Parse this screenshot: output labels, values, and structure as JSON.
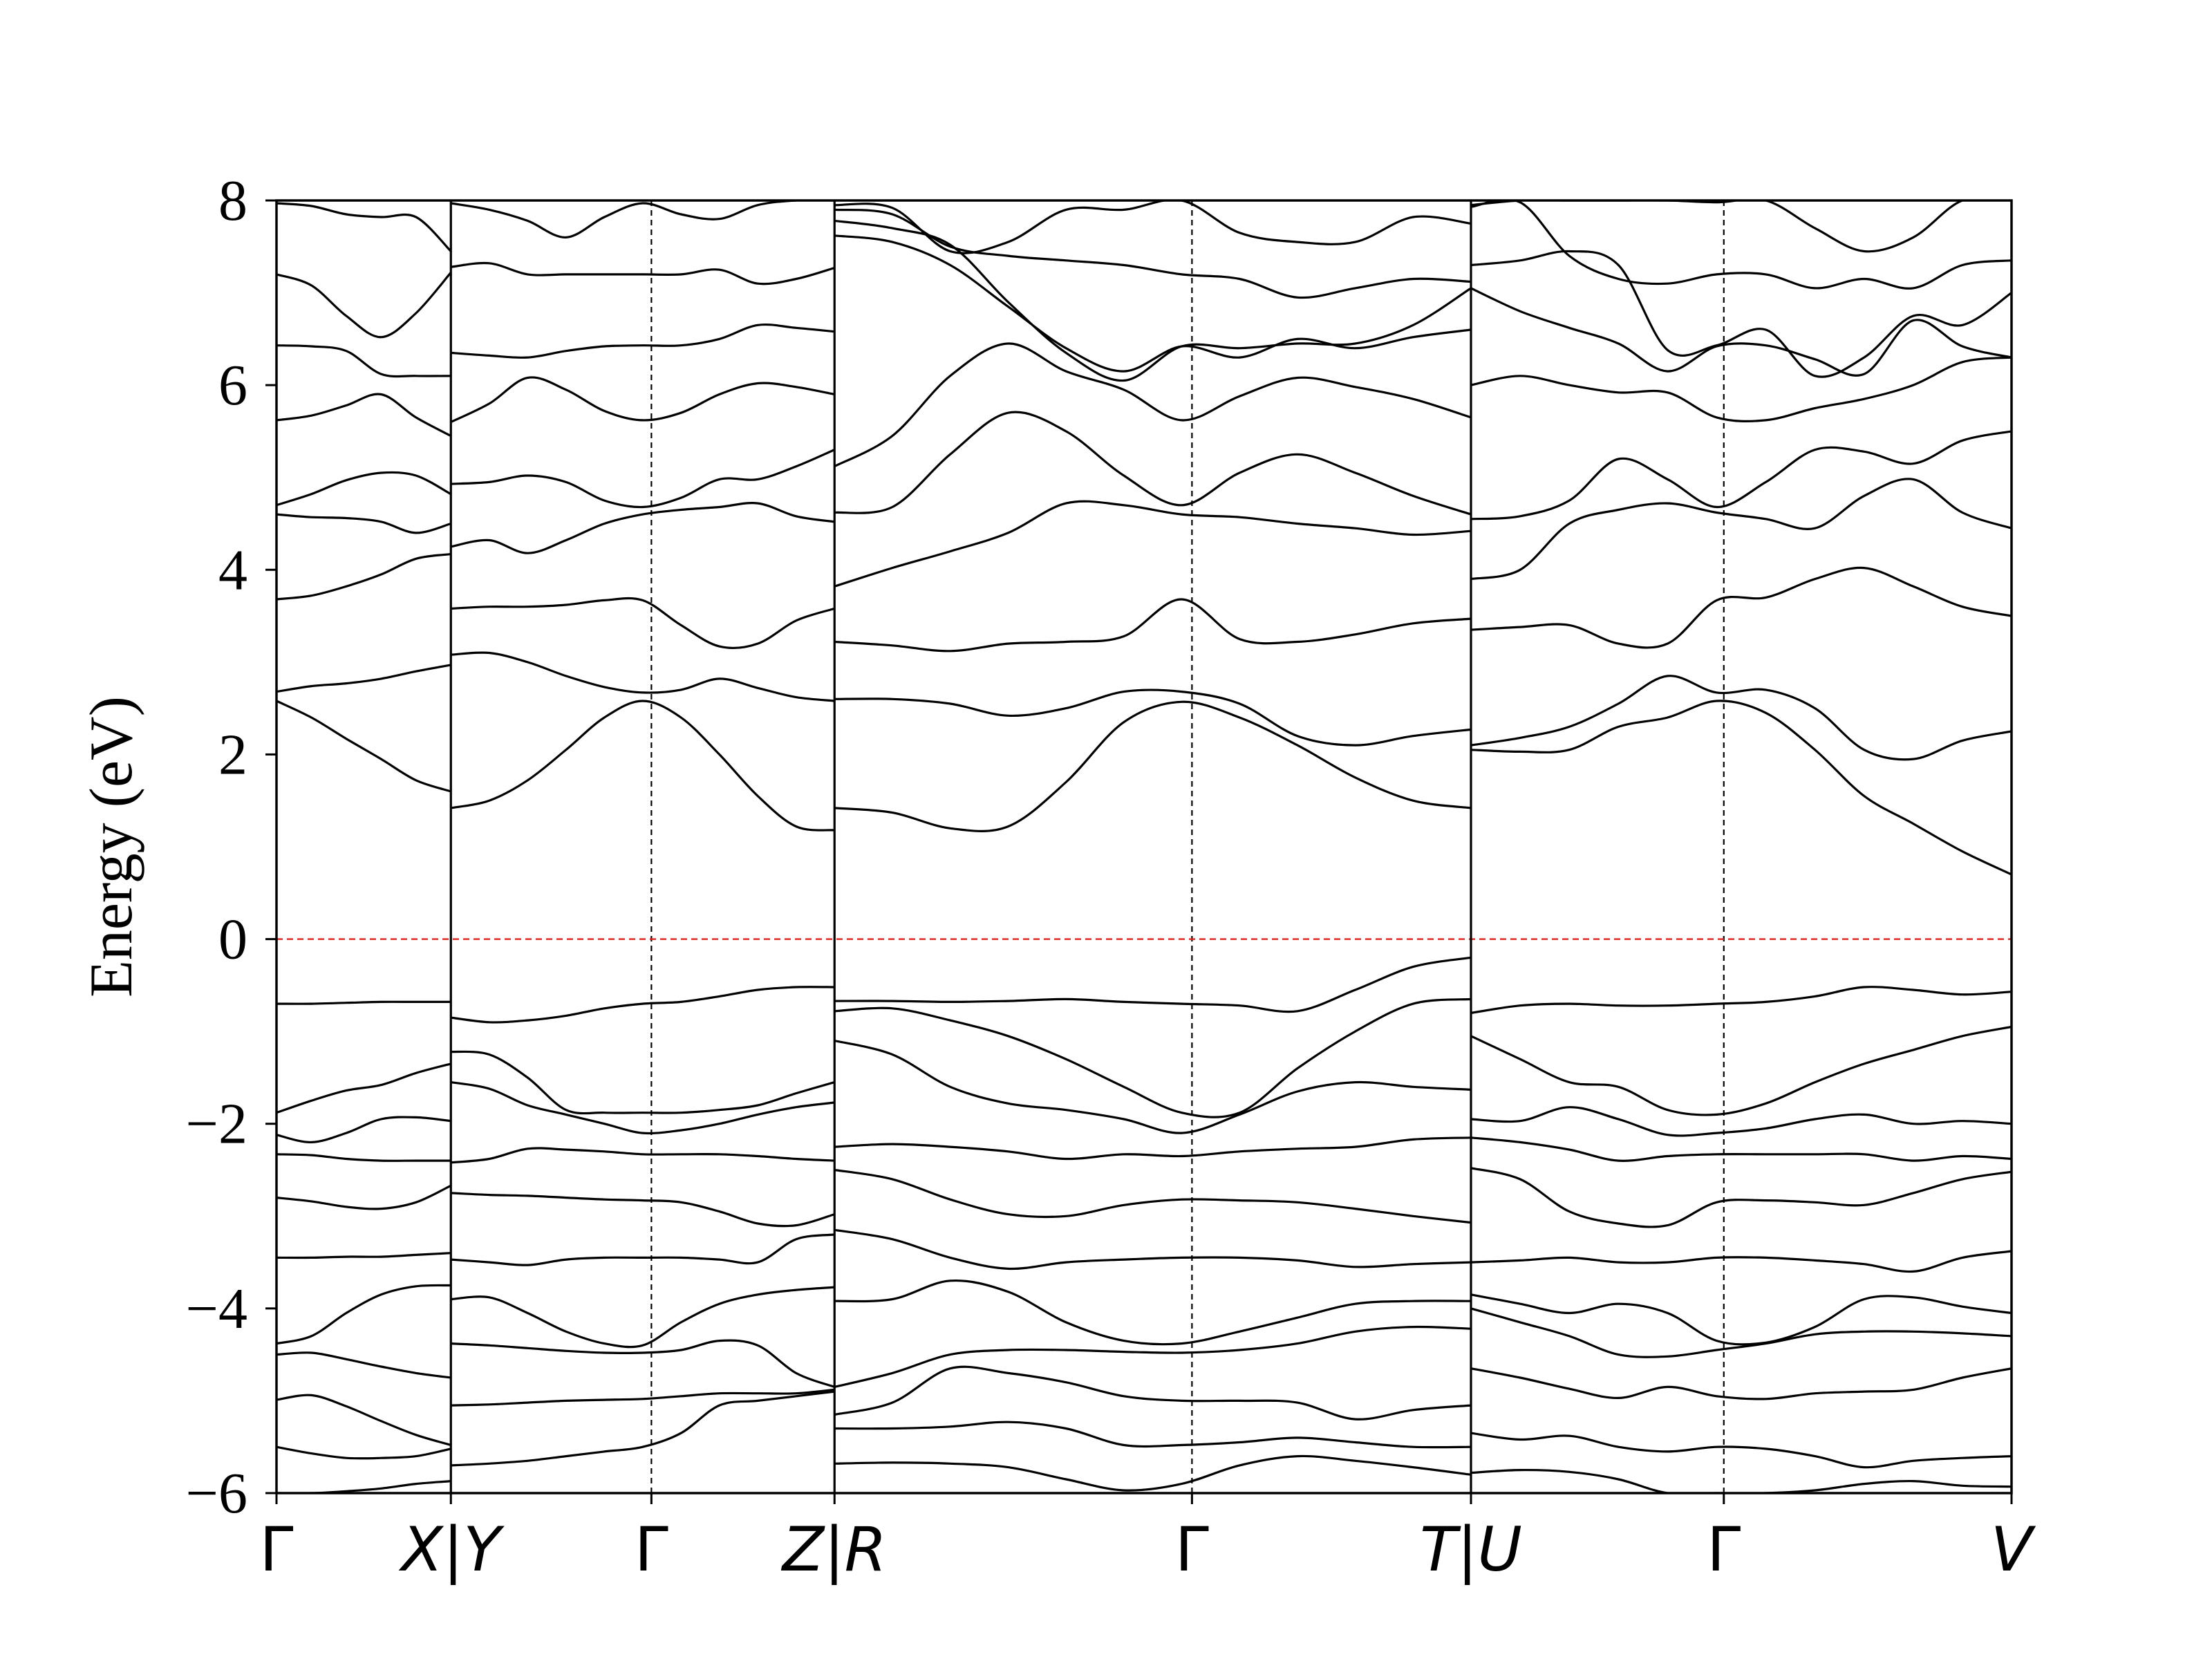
{
  "chart_data": {
    "type": "line",
    "title": "",
    "ylabel": "Energy (eV)",
    "xlabel": "",
    "ylim": [
      -6,
      8
    ],
    "yticks": [
      8,
      6,
      4,
      2,
      0,
      -2,
      -4,
      -6
    ],
    "ytick_labels": [
      "8",
      "6",
      "4",
      "2",
      "0",
      "−2",
      "−4",
      "−6"
    ],
    "grid": false,
    "fermi_level": {
      "energy": 0,
      "color": "#e0201b",
      "style": "dashed"
    },
    "high_symmetry_points": [
      {
        "label": "Γ",
        "x": 0.0
      },
      {
        "label": "X|Y",
        "x": 1.0
      },
      {
        "label": "Γ",
        "x": 2.15
      },
      {
        "label": "Z|R",
        "x": 3.2
      },
      {
        "label": "Γ",
        "x": 5.25
      },
      {
        "label": "T|U",
        "x": 6.85
      },
      {
        "label": "Γ",
        "x": 8.3
      },
      {
        "label": "V",
        "x": 9.95
      }
    ],
    "segment_breaks": [
      1.0,
      3.2,
      6.85
    ],
    "symmetry_dashed_lines": [
      2.15,
      5.25,
      8.3
    ],
    "segments": [
      {
        "path": "Γ–X",
        "x_start": 0.0,
        "x_end": 1.0,
        "bands": [
          [
            -6.0,
            -6.0,
            -5.98,
            -5.95,
            -5.9,
            -5.87
          ],
          [
            -5.5,
            -5.57,
            -5.62,
            -5.62,
            -5.6,
            -5.52
          ],
          [
            -4.99,
            -4.94,
            -5.06,
            -5.22,
            -5.37,
            -5.48
          ],
          [
            -4.5,
            -4.48,
            -4.55,
            -4.63,
            -4.7,
            -4.75
          ],
          [
            -4.38,
            -4.3,
            -4.05,
            -3.85,
            -3.76,
            -3.75
          ],
          [
            -3.45,
            -3.45,
            -3.44,
            -3.44,
            -3.42,
            -3.4
          ],
          [
            -2.8,
            -2.84,
            -2.9,
            -2.92,
            -2.85,
            -2.67
          ],
          [
            -2.33,
            -2.34,
            -2.38,
            -2.4,
            -2.4,
            -2.4
          ],
          [
            -2.12,
            -2.2,
            -2.1,
            -1.95,
            -1.93,
            -1.97
          ],
          [
            -1.88,
            -1.75,
            -1.64,
            -1.58,
            -1.45,
            -1.35
          ],
          [
            -0.7,
            -0.7,
            -0.69,
            -0.68,
            -0.68,
            -0.68
          ],
          [
            2.58,
            2.4,
            2.17,
            1.95,
            1.72,
            1.6
          ],
          [
            2.68,
            2.74,
            2.77,
            2.82,
            2.9,
            2.97
          ],
          [
            3.68,
            3.72,
            3.82,
            3.95,
            4.12,
            4.17
          ],
          [
            4.6,
            4.57,
            4.56,
            4.52,
            4.4,
            4.5
          ],
          [
            4.7,
            4.82,
            4.97,
            5.05,
            5.02,
            4.82
          ],
          [
            5.62,
            5.67,
            5.78,
            5.9,
            5.65,
            5.45
          ],
          [
            6.43,
            6.42,
            6.37,
            6.12,
            6.1,
            6.1
          ],
          [
            7.2,
            7.08,
            6.75,
            6.52,
            6.78,
            7.22
          ],
          [
            7.97,
            7.94,
            7.85,
            7.82,
            7.82,
            7.45
          ]
        ]
      },
      {
        "path": "Y–Γ–Z",
        "x_start": 1.0,
        "x_end": 3.2,
        "bands": [
          [
            -5.7,
            -5.68,
            -5.65,
            -5.6,
            -5.55,
            -5.5,
            -5.35,
            -5.05,
            -5.0,
            -4.95,
            -4.9
          ],
          [
            -5.05,
            -5.04,
            -5.02,
            -5.0,
            -4.99,
            -4.98,
            -4.95,
            -4.92,
            -4.92,
            -4.92,
            -4.88
          ],
          [
            -4.38,
            -4.4,
            -4.43,
            -4.46,
            -4.48,
            -4.48,
            -4.45,
            -4.35,
            -4.4,
            -4.7,
            -4.85
          ],
          [
            -3.9,
            -3.88,
            -4.05,
            -4.25,
            -4.38,
            -4.4,
            -4.15,
            -3.95,
            -3.85,
            -3.8,
            -3.77
          ],
          [
            -3.47,
            -3.5,
            -3.53,
            -3.47,
            -3.45,
            -3.45,
            -3.45,
            -3.47,
            -3.5,
            -3.25,
            -3.2
          ],
          [
            -2.75,
            -2.77,
            -2.78,
            -2.8,
            -2.82,
            -2.83,
            -2.85,
            -2.95,
            -3.08,
            -3.1,
            -2.98
          ],
          [
            -2.42,
            -2.38,
            -2.27,
            -2.28,
            -2.3,
            -2.33,
            -2.33,
            -2.33,
            -2.35,
            -2.38,
            -2.4
          ],
          [
            -1.55,
            -1.62,
            -1.8,
            -1.9,
            -2.0,
            -2.1,
            -2.07,
            -2.0,
            -1.9,
            -1.82,
            -1.77
          ],
          [
            -1.22,
            -1.25,
            -1.5,
            -1.85,
            -1.88,
            -1.88,
            -1.88,
            -1.85,
            -1.8,
            -1.67,
            -1.55
          ],
          [
            -0.85,
            -0.9,
            -0.88,
            -0.83,
            -0.75,
            -0.7,
            -0.68,
            -0.62,
            -0.55,
            -0.52,
            -0.52
          ],
          [
            1.42,
            1.5,
            1.72,
            2.05,
            2.4,
            2.58,
            2.4,
            2.0,
            1.55,
            1.22,
            1.18
          ],
          [
            3.08,
            3.1,
            3.0,
            2.85,
            2.73,
            2.67,
            2.7,
            2.82,
            2.72,
            2.62,
            2.58
          ],
          [
            3.58,
            3.6,
            3.6,
            3.62,
            3.67,
            3.67,
            3.4,
            3.17,
            3.2,
            3.45,
            3.58
          ],
          [
            4.25,
            4.32,
            4.18,
            4.32,
            4.5,
            4.6,
            4.65,
            4.68,
            4.72,
            4.58,
            4.52
          ],
          [
            4.93,
            4.95,
            5.02,
            4.95,
            4.75,
            4.68,
            4.78,
            4.98,
            4.98,
            5.12,
            5.3
          ],
          [
            5.6,
            5.8,
            6.08,
            5.95,
            5.72,
            5.62,
            5.7,
            5.9,
            6.02,
            5.98,
            5.9
          ],
          [
            6.35,
            6.32,
            6.3,
            6.37,
            6.42,
            6.43,
            6.43,
            6.5,
            6.65,
            6.62,
            6.58
          ],
          [
            7.28,
            7.32,
            7.2,
            7.2,
            7.2,
            7.2,
            7.2,
            7.25,
            7.1,
            7.15,
            7.27
          ],
          [
            7.97,
            7.9,
            7.78,
            7.6,
            7.82,
            7.97,
            7.85,
            7.8,
            7.95,
            8.0,
            8.0
          ]
        ]
      },
      {
        "path": "R–Γ–T",
        "x_start": 3.2,
        "x_end": 6.85,
        "bands": [
          [
            -5.68,
            -5.67,
            -5.68,
            -5.72,
            -5.85,
            -5.97,
            -5.9,
            -5.7,
            -5.6,
            -5.65,
            -5.72,
            -5.8
          ],
          [
            -5.3,
            -5.3,
            -5.28,
            -5.23,
            -5.3,
            -5.48,
            -5.48,
            -5.45,
            -5.4,
            -5.45,
            -5.5,
            -5.5
          ],
          [
            -5.15,
            -5.02,
            -4.65,
            -4.7,
            -4.8,
            -4.95,
            -5.0,
            -5.0,
            -5.02,
            -5.2,
            -5.1,
            -5.05
          ],
          [
            -4.85,
            -4.7,
            -4.5,
            -4.45,
            -4.45,
            -4.47,
            -4.48,
            -4.45,
            -4.38,
            -4.25,
            -4.2,
            -4.22
          ],
          [
            -3.92,
            -3.9,
            -3.7,
            -3.82,
            -4.15,
            -4.35,
            -4.38,
            -4.25,
            -4.1,
            -3.95,
            -3.92,
            -3.92
          ],
          [
            -3.15,
            -3.25,
            -3.45,
            -3.57,
            -3.5,
            -3.47,
            -3.45,
            -3.45,
            -3.48,
            -3.55,
            -3.52,
            -3.5
          ],
          [
            -2.5,
            -2.6,
            -2.82,
            -2.98,
            -3.0,
            -2.88,
            -2.82,
            -2.83,
            -2.85,
            -2.92,
            -3.0,
            -3.07
          ],
          [
            -2.25,
            -2.22,
            -2.25,
            -2.3,
            -2.38,
            -2.33,
            -2.35,
            -2.3,
            -2.27,
            -2.25,
            -2.17,
            -2.15
          ],
          [
            -1.1,
            -1.25,
            -1.6,
            -1.78,
            -1.85,
            -1.95,
            -2.1,
            -1.9,
            -1.65,
            -1.55,
            -1.6,
            -1.63
          ],
          [
            -0.78,
            -0.75,
            -0.88,
            -1.05,
            -1.3,
            -1.6,
            -1.88,
            -1.88,
            -1.4,
            -1.0,
            -0.7,
            -0.65
          ],
          [
            -0.67,
            -0.67,
            -0.68,
            -0.67,
            -0.65,
            -0.68,
            -0.7,
            -0.72,
            -0.78,
            -0.55,
            -0.3,
            -0.2
          ],
          [
            1.42,
            1.37,
            1.2,
            1.22,
            1.7,
            2.35,
            2.57,
            2.4,
            2.1,
            1.75,
            1.5,
            1.42
          ],
          [
            2.6,
            2.6,
            2.55,
            2.42,
            2.5,
            2.68,
            2.68,
            2.55,
            2.2,
            2.1,
            2.2,
            2.27
          ],
          [
            3.22,
            3.18,
            3.12,
            3.2,
            3.22,
            3.28,
            3.68,
            3.25,
            3.22,
            3.3,
            3.42,
            3.47
          ],
          [
            3.82,
            4.02,
            4.2,
            4.4,
            4.72,
            4.7,
            4.6,
            4.57,
            4.5,
            4.45,
            4.38,
            4.42
          ],
          [
            4.62,
            4.68,
            5.25,
            5.7,
            5.5,
            5.02,
            4.7,
            5.05,
            5.25,
            5.05,
            4.8,
            4.6
          ],
          [
            5.12,
            5.45,
            6.1,
            6.45,
            6.15,
            5.95,
            5.62,
            5.88,
            6.08,
            5.98,
            5.85,
            5.65
          ],
          [
            7.62,
            7.55,
            7.3,
            6.85,
            6.4,
            6.15,
            6.42,
            6.3,
            6.5,
            6.4,
            6.52,
            6.6
          ],
          [
            7.78,
            7.7,
            7.52,
            6.9,
            6.35,
            6.05,
            6.42,
            6.4,
            6.45,
            6.45,
            6.65,
            7.05
          ],
          [
            7.9,
            7.85,
            7.5,
            7.4,
            7.35,
            7.3,
            7.2,
            7.15,
            6.95,
            7.05,
            7.15,
            7.12
          ],
          [
            7.95,
            7.92,
            7.45,
            7.55,
            7.9,
            7.9,
            8.0,
            7.65,
            7.55,
            7.55,
            7.82,
            7.75
          ]
        ]
      },
      {
        "path": "U–Γ–V",
        "x_start": 6.85,
        "x_end": 9.95,
        "bands": [
          [
            -5.78,
            -5.75,
            -5.77,
            -5.85,
            -6.0,
            -6.0,
            -6.0,
            -5.97,
            -5.9,
            -5.87,
            -5.92,
            -5.93
          ],
          [
            -5.35,
            -5.42,
            -5.38,
            -5.5,
            -5.55,
            -5.5,
            -5.52,
            -5.6,
            -5.72,
            -5.65,
            -5.62,
            -5.6
          ],
          [
            -4.65,
            -4.75,
            -4.87,
            -4.97,
            -4.85,
            -4.95,
            -4.98,
            -4.92,
            -4.9,
            -4.88,
            -4.75,
            -4.65
          ],
          [
            -4.0,
            -4.15,
            -4.3,
            -4.5,
            -4.52,
            -4.45,
            -4.38,
            -4.28,
            -4.25,
            -4.25,
            -4.27,
            -4.3
          ],
          [
            -3.85,
            -3.95,
            -4.05,
            -3.95,
            -4.05,
            -4.35,
            -4.37,
            -4.2,
            -3.9,
            -3.88,
            -3.98,
            -4.05
          ],
          [
            -3.5,
            -3.48,
            -3.45,
            -3.5,
            -3.5,
            -3.45,
            -3.45,
            -3.48,
            -3.52,
            -3.6,
            -3.45,
            -3.38
          ],
          [
            -2.48,
            -2.6,
            -2.95,
            -3.08,
            -3.1,
            -2.85,
            -2.83,
            -2.85,
            -2.88,
            -2.75,
            -2.6,
            -2.52
          ],
          [
            -2.15,
            -2.2,
            -2.28,
            -2.4,
            -2.35,
            -2.33,
            -2.33,
            -2.33,
            -2.33,
            -2.4,
            -2.35,
            -2.38
          ],
          [
            -1.95,
            -1.97,
            -1.82,
            -1.95,
            -2.12,
            -2.1,
            -2.05,
            -1.95,
            -1.9,
            -2.0,
            -1.97,
            -2.0
          ],
          [
            -1.05,
            -1.3,
            -1.55,
            -1.6,
            -1.85,
            -1.9,
            -1.78,
            -1.55,
            -1.35,
            -1.2,
            -1.05,
            -0.95
          ],
          [
            -0.8,
            -0.72,
            -0.7,
            -0.72,
            -0.72,
            -0.7,
            -0.68,
            -0.62,
            -0.52,
            -0.55,
            -0.6,
            -0.57
          ],
          [
            2.05,
            2.03,
            2.05,
            2.3,
            2.4,
            2.58,
            2.45,
            2.05,
            1.55,
            1.25,
            0.95,
            0.7
          ],
          [
            2.1,
            2.18,
            2.3,
            2.55,
            2.85,
            2.67,
            2.7,
            2.5,
            2.05,
            1.95,
            2.15,
            2.25
          ],
          [
            3.35,
            3.38,
            3.4,
            3.2,
            3.2,
            3.67,
            3.7,
            3.9,
            4.02,
            3.82,
            3.6,
            3.5
          ],
          [
            3.9,
            4.0,
            4.5,
            4.65,
            4.72,
            4.62,
            4.55,
            4.45,
            4.8,
            4.98,
            4.62,
            4.45
          ],
          [
            4.55,
            4.58,
            4.75,
            5.2,
            4.98,
            4.68,
            4.95,
            5.3,
            5.28,
            5.15,
            5.4,
            5.5
          ],
          [
            6.0,
            6.1,
            6.0,
            5.92,
            5.92,
            5.65,
            5.62,
            5.75,
            5.85,
            6.0,
            6.25,
            6.3
          ],
          [
            7.05,
            6.8,
            6.62,
            6.45,
            6.15,
            6.42,
            6.43,
            6.28,
            6.12,
            6.7,
            6.42,
            6.3
          ],
          [
            7.3,
            7.35,
            7.45,
            7.3,
            6.38,
            6.43,
            6.6,
            6.1,
            6.3,
            6.75,
            6.65,
            7.0
          ],
          [
            7.93,
            7.98,
            7.4,
            7.15,
            7.1,
            7.2,
            7.2,
            7.05,
            7.15,
            7.05,
            7.3,
            7.35
          ],
          [
            7.95,
            8.0,
            8.0,
            8.0,
            8.0,
            7.98,
            8.0,
            7.7,
            7.45,
            7.6,
            8.0,
            8.0
          ]
        ]
      }
    ]
  }
}
